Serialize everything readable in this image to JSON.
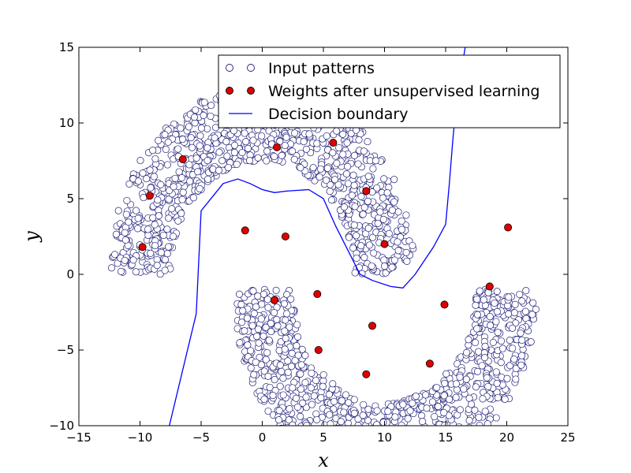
{
  "chart_data": {
    "type": "scatter",
    "title": "",
    "xlabel": "x",
    "ylabel": "y",
    "xlim": [
      -15,
      25
    ],
    "ylim": [
      -10,
      15
    ],
    "xticks": [
      -15,
      -10,
      -5,
      0,
      5,
      10,
      15,
      20,
      25
    ],
    "yticks": [
      -10,
      -5,
      0,
      5,
      10,
      15
    ],
    "grid": false,
    "legend_position": "top-right",
    "colors": {
      "input_fill": "#ffffff",
      "input_edge": "#1f1f7a",
      "weight_fill": "#e00000",
      "weight_edge": "#000000",
      "boundary": "#0000ff"
    },
    "moons": {
      "upper": {
        "center": [
          0,
          0
        ],
        "radius": 10,
        "theta_range_deg": [
          0,
          180
        ],
        "band_half_width": 2.5
      },
      "lower": {
        "center": [
          10,
          0
        ],
        "radius": 10,
        "theta_range_deg": [
          180,
          360
        ],
        "band_half_width": 2.5,
        "y_offset": -1
      }
    },
    "series": [
      {
        "name": "Input patterns",
        "kind": "markers-hollow"
      },
      {
        "name": "Weights after unsupervised learning",
        "kind": "markers-filled",
        "points": [
          [
            -9.8,
            1.8
          ],
          [
            -9.2,
            5.2
          ],
          [
            -6.5,
            7.6
          ],
          [
            1.2,
            8.4
          ],
          [
            5.8,
            8.7
          ],
          [
            8.5,
            5.5
          ],
          [
            10.0,
            2.0
          ],
          [
            1.9,
            2.5
          ],
          [
            -1.4,
            2.9
          ],
          [
            1.0,
            -1.7
          ],
          [
            4.5,
            -1.3
          ],
          [
            4.6,
            -5.0
          ],
          [
            9.0,
            -3.4
          ],
          [
            8.5,
            -6.6
          ],
          [
            13.7,
            -5.9
          ],
          [
            14.9,
            -2.0
          ],
          [
            18.6,
            -0.8
          ],
          [
            20.1,
            3.1
          ]
        ]
      },
      {
        "name": "Decision boundary",
        "kind": "line",
        "points": [
          [
            -7.6,
            -10
          ],
          [
            -5.4,
            -2.6
          ],
          [
            -5.0,
            4.2
          ],
          [
            -4.0,
            5.2
          ],
          [
            -3.2,
            6.0
          ],
          [
            -2.0,
            6.3
          ],
          [
            -1.0,
            6.0
          ],
          [
            0.0,
            5.6
          ],
          [
            1.0,
            5.4
          ],
          [
            2.0,
            5.5
          ],
          [
            3.8,
            5.6
          ],
          [
            5.0,
            5.0
          ],
          [
            6.0,
            3.2
          ],
          [
            7.0,
            1.6
          ],
          [
            8.0,
            0.0
          ],
          [
            9.0,
            -0.4
          ],
          [
            10.5,
            -0.8
          ],
          [
            11.5,
            -0.9
          ],
          [
            12.5,
            0.0
          ],
          [
            14.0,
            1.8
          ],
          [
            15.0,
            3.3
          ],
          [
            15.3,
            6.0
          ],
          [
            15.6,
            9.0
          ],
          [
            15.9,
            11.5
          ],
          [
            16.3,
            13.5
          ],
          [
            16.6,
            15.0
          ]
        ]
      }
    ]
  }
}
